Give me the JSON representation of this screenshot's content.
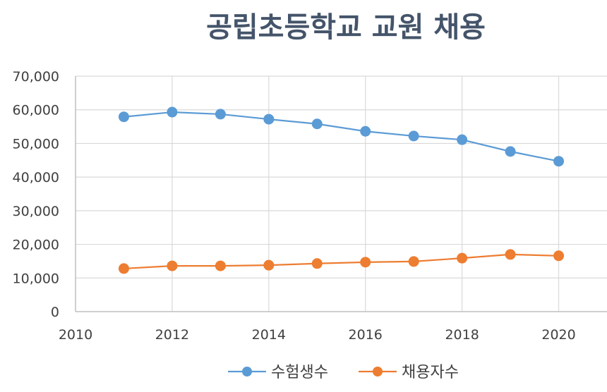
{
  "chart_data": {
    "type": "scatter",
    "title": "공립초등학교 교원 채용",
    "xlabel": "",
    "ylabel": "",
    "xlim": [
      2010,
      2021
    ],
    "ylim": [
      0,
      70000
    ],
    "x_ticks": [
      "2010",
      "2012",
      "2014",
      "2016",
      "2018",
      "2020"
    ],
    "y_ticks": [
      "0",
      "10,000",
      "20,000",
      "30,000",
      "40,000",
      "50,000",
      "60,000",
      "70,000"
    ],
    "grid": true,
    "legend_position": "bottom",
    "x": [
      2011,
      2012,
      2013,
      2014,
      2015,
      2016,
      2017,
      2018,
      2019,
      2020
    ],
    "series": [
      {
        "name": "수험생수",
        "color": "#5b9bd5",
        "values": [
          57900,
          59300,
          58700,
          57200,
          55800,
          53600,
          52200,
          51100,
          47600,
          44700
        ]
      },
      {
        "name": "채용자수",
        "color": "#ed7d31",
        "values": [
          12800,
          13600,
          13600,
          13800,
          14300,
          14700,
          14900,
          15900,
          17000,
          16600
        ]
      }
    ]
  }
}
